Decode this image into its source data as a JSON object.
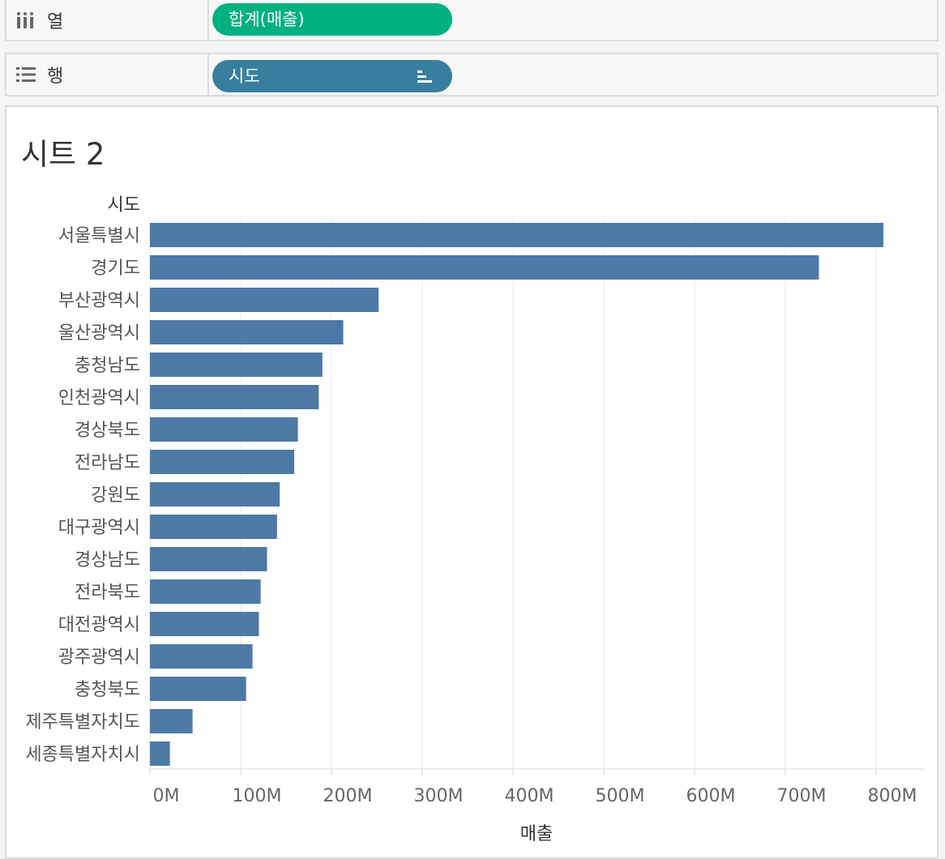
{
  "shelves": {
    "columns": {
      "label": "열",
      "icon": "columns-icon",
      "pill": "합계(매출)",
      "pill_color": "#00b180"
    },
    "rows": {
      "label": "행",
      "icon": "rows-icon",
      "pill": "시도",
      "pill_color": "#387f9f",
      "pill_icon": "sort-descending-icon"
    }
  },
  "sheet": {
    "title": "시트 2"
  },
  "chart_data": {
    "type": "bar",
    "orientation": "horizontal",
    "row_header": "시도",
    "xlabel": "매출",
    "bar_color": "#4e79a7",
    "xlim": [
      0,
      850000000
    ],
    "xticks": [
      0,
      100000000,
      200000000,
      300000000,
      400000000,
      500000000,
      600000000,
      700000000,
      800000000
    ],
    "xtick_labels": [
      "0M",
      "100M",
      "200M",
      "300M",
      "400M",
      "500M",
      "600M",
      "700M",
      "800M"
    ],
    "grid": true,
    "categories": [
      "서울특별시",
      "경기도",
      "부산광역시",
      "울산광역시",
      "충청남도",
      "인천광역시",
      "경상북도",
      "전라남도",
      "강원도",
      "대구광역시",
      "경상남도",
      "전라북도",
      "대전광역시",
      "광주광역시",
      "충청북도",
      "제주특별자치도",
      "세종특별자치시"
    ],
    "values": [
      808000000,
      737000000,
      252000000,
      213000000,
      190000000,
      186000000,
      163000000,
      159000000,
      143000000,
      140000000,
      129000000,
      122000000,
      120000000,
      113000000,
      106000000,
      47000000,
      22000000
    ]
  }
}
